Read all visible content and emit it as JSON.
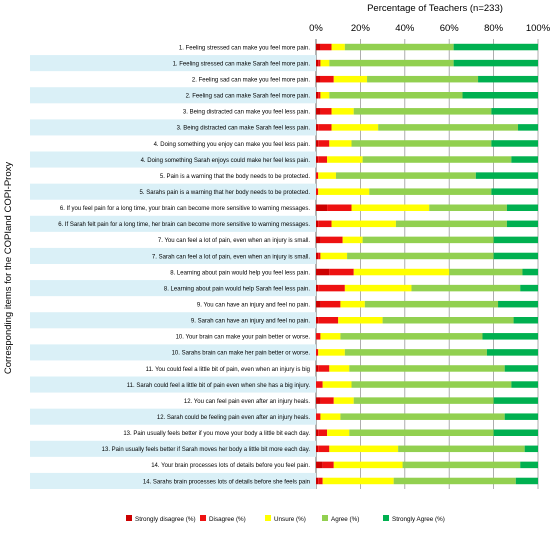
{
  "chart_data": {
    "type": "bar",
    "orientation": "horizontal",
    "stacked": true,
    "title": "Percentage of Teachers (n=233)",
    "ylabel": "Corresponding items for the COPIand COPI-Proxy",
    "xlabel": "",
    "xlim": [
      0,
      100
    ],
    "x_ticks": [
      "0%",
      "20%",
      "40%",
      "60%",
      "80%",
      "100%"
    ],
    "grid": true,
    "legend_position": "bottom",
    "categories": [
      "1. Feeling stressed can make you feel more pain.",
      "1. Feeling stressed can make Sarah feel more pain.",
      "2. Feeling sad can make you feel more pain.",
      "2. Feeling sad can make Sarah feel more pain.",
      "3. Being distracted can make you feel less pain.",
      "3. Being distracted can make Sarah feel less pain.",
      "4. Doing something you enjoy can make you feel less pain.",
      "4. Doing something Sarah enjoys could make her feel less pain.",
      "5. Pain is a warning that the body needs to be protected.",
      "5. Sarahs pain is a warning that her body needs to be protected.",
      "6. If you feel pain for a long time, your brain can become more sensitive to warning messages.",
      "6. If Sarah felt pain for a long time, her brain can become more sensitive to warning messages.",
      "7. You can feel a lot of pain, even when an injury is small.",
      "7. Sarah can feel a lot of pain, even when an injury is small.",
      "8. Learning about pain would help you feel less pain.",
      "8. Learning about pain would help Sarah feel less pain.",
      "9. You can have an injury and feel no pain.",
      "9. Sarah can have an injury and feel no pain.",
      "10. Your brain can make your pain better or worse.",
      "10. Sarahs brain can make her pain better or worse.",
      "11. You could feel a little bit of pain, even when an injury is big",
      "11. Sarah could feel a little bit of pain even when she has a big injury.",
      "12. You can feel pain even after an injury heals.",
      "12. Sarah could be feeling pain even after an injury heals.",
      "13. Pain usually feels better if you move your body a little bit each day.",
      "13. Pain usually feels better if Sarah moves her body a little bit more each day.",
      "14. Your brain processes lots of details before you feel pain.",
      "14. Sarahs brain processes lots of details before she feels pain"
    ],
    "series": [
      {
        "name": "Strongly disagree (%)",
        "color": "#cc0000",
        "values": [
          2,
          1,
          2,
          1,
          2,
          1,
          1,
          1,
          0,
          0,
          5,
          1,
          2,
          1,
          6,
          1,
          2,
          1,
          0,
          0,
          1,
          0,
          2,
          0,
          1,
          1,
          3,
          1
        ]
      },
      {
        "name": "Disagree (%)",
        "color": "#ee1111",
        "values": [
          5,
          1,
          6,
          1,
          5,
          6,
          5,
          4,
          1,
          1,
          11,
          6,
          10,
          1,
          11,
          12,
          9,
          9,
          2,
          1,
          5,
          3,
          6,
          2,
          4,
          5,
          5,
          2
        ]
      },
      {
        "name": "Unsure (%)",
        "color": "#ffff00",
        "values": [
          6,
          4,
          15,
          4,
          10,
          21,
          10,
          16,
          8,
          23,
          35,
          29,
          9,
          12,
          43,
          30,
          11,
          20,
          9,
          12,
          9,
          13,
          9,
          9,
          10,
          31,
          31,
          32
        ]
      },
      {
        "name": "Agree (%)",
        "color": "#92d050",
        "values": [
          49,
          56,
          50,
          60,
          62,
          63,
          63,
          67,
          63,
          55,
          35,
          50,
          59,
          66,
          33,
          49,
          60,
          59,
          64,
          64,
          70,
          72,
          63,
          74,
          65,
          57,
          53,
          55
        ]
      },
      {
        "name": "Strongly Agree (%)",
        "color": "#00b050",
        "values": [
          38,
          38,
          27,
          34,
          21,
          9,
          21,
          12,
          28,
          21,
          14,
          14,
          20,
          20,
          7,
          8,
          18,
          11,
          25,
          23,
          15,
          12,
          20,
          15,
          20,
          6,
          8,
          10
        ]
      }
    ]
  }
}
